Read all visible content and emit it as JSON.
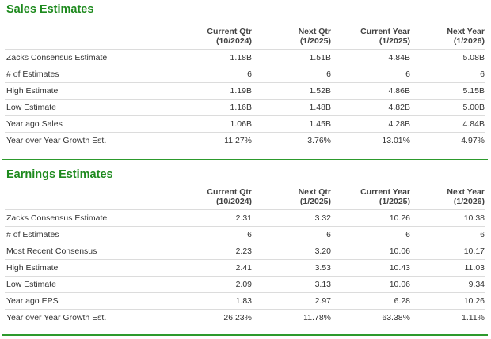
{
  "sales_estimates": {
    "title": "Sales Estimates",
    "columns": [
      {
        "label": "",
        "sub": ""
      },
      {
        "label": "Current Qtr",
        "sub": "(10/2024)"
      },
      {
        "label": "Next Qtr",
        "sub": "(1/2025)"
      },
      {
        "label": "Current Year",
        "sub": "(1/2025)"
      },
      {
        "label": "Next Year",
        "sub": "(1/2026)"
      }
    ],
    "rows": [
      {
        "label": "Zacks Consensus Estimate",
        "values": [
          "1.18B",
          "1.51B",
          "4.84B",
          "5.08B"
        ]
      },
      {
        "label": "# of Estimates",
        "values": [
          "6",
          "6",
          "6",
          "6"
        ]
      },
      {
        "label": "High Estimate",
        "values": [
          "1.19B",
          "1.52B",
          "4.86B",
          "5.15B"
        ]
      },
      {
        "label": "Low Estimate",
        "values": [
          "1.16B",
          "1.48B",
          "4.82B",
          "5.00B"
        ]
      },
      {
        "label": "Year ago Sales",
        "values": [
          "1.06B",
          "1.45B",
          "4.28B",
          "4.84B"
        ]
      },
      {
        "label": "Year over Year Growth Est.",
        "values": [
          "11.27%",
          "3.76%",
          "13.01%",
          "4.97%"
        ]
      }
    ]
  },
  "earnings_estimates": {
    "title": "Earnings Estimates",
    "columns": [
      {
        "label": "",
        "sub": ""
      },
      {
        "label": "Current Qtr",
        "sub": "(10/2024)"
      },
      {
        "label": "Next Qtr",
        "sub": "(1/2025)"
      },
      {
        "label": "Current Year",
        "sub": "(1/2025)"
      },
      {
        "label": "Next Year",
        "sub": "(1/2026)"
      }
    ],
    "rows": [
      {
        "label": "Zacks Consensus Estimate",
        "values": [
          "2.31",
          "3.32",
          "10.26",
          "10.38"
        ]
      },
      {
        "label": "# of Estimates",
        "values": [
          "6",
          "6",
          "6",
          "6"
        ]
      },
      {
        "label": "Most Recent Consensus",
        "values": [
          "2.23",
          "3.20",
          "10.06",
          "10.17"
        ]
      },
      {
        "label": "High Estimate",
        "values": [
          "2.41",
          "3.53",
          "10.43",
          "11.03"
        ]
      },
      {
        "label": "Low Estimate",
        "values": [
          "2.09",
          "3.13",
          "10.06",
          "9.34"
        ]
      },
      {
        "label": "Year ago EPS",
        "values": [
          "1.83",
          "2.97",
          "6.28",
          "10.26"
        ]
      },
      {
        "label": "Year over Year Growth Est.",
        "values": [
          "26.23%",
          "11.78%",
          "63.38%",
          "1.11%"
        ]
      }
    ]
  },
  "colors": {
    "title_green": "#1e8a1e",
    "rule_green": "#2d9a2d",
    "row_border": "#dcdcdc",
    "text": "#333333"
  }
}
